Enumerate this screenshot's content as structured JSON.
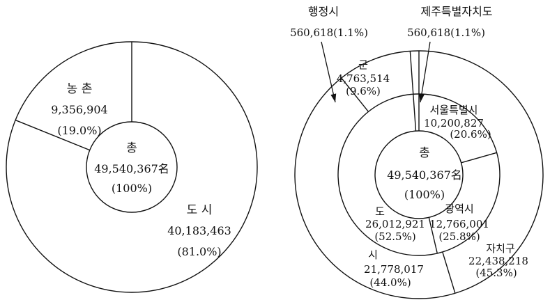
{
  "chart_data": [
    {
      "type": "pie",
      "center": {
        "label": "총",
        "value": "49,540,367名",
        "percent": "(100%)"
      },
      "slices": [
        {
          "label": "농  촌",
          "value": 9356904,
          "value_text": "9,356,904",
          "percent": "(19.0%)"
        },
        {
          "label": "도  시",
          "value": 40183463,
          "value_text": "40,183,463",
          "percent": "(81.0%)"
        }
      ]
    },
    {
      "type": "pie",
      "center": {
        "label": "총",
        "value": "49,540,367名",
        "percent": "(100%)"
      },
      "inner_ring": [
        {
          "label": "서울특별시",
          "value": 10200827,
          "value_text": "10,200,827",
          "percent": "(20.6%)"
        },
        {
          "label": "광역시",
          "value": 12766001,
          "value_text": "12,766,001",
          "percent": "(25.8%)"
        },
        {
          "label": "도",
          "value": 26012921,
          "value_text": "26,012,921",
          "percent": "(52.5%)"
        },
        {
          "label": "제주특별자치도",
          "value": 560618,
          "value_text": "560,618",
          "percent": "(1.1%)"
        }
      ],
      "outer_ring": [
        {
          "label": "자치구",
          "value": 22438218,
          "value_text": "22,438,218",
          "percent": "(45.3%)"
        },
        {
          "label": "시",
          "value": 21778017,
          "value_text": "21,778,017",
          "percent": "(44.0%)"
        },
        {
          "label": "군",
          "value": 4763514,
          "value_text": "4,763,514",
          "percent": "(9.6%)"
        },
        {
          "label": "행정시",
          "value": 560618,
          "value_text": "560,618",
          "percent": "(1.1%)"
        }
      ]
    }
  ]
}
